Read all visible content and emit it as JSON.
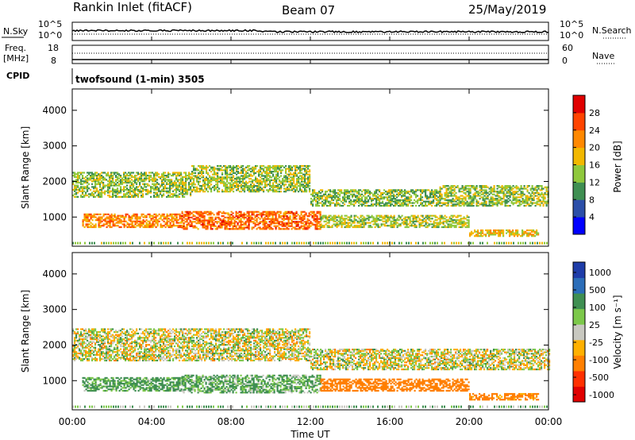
{
  "header": {
    "station": "Rankin Inlet (fitACF)",
    "beam": "Beam 07",
    "date": "25/May/2019"
  },
  "noise_panel": {
    "left_label": "N.Sky",
    "right_label": "N.Search",
    "left_ticks": [
      "10^5",
      "10^0"
    ],
    "right_ticks": [
      "10^5",
      "10^0"
    ]
  },
  "freq_panel": {
    "left_label_1": "Freq.",
    "left_label_2": "[MHz]",
    "right_label": "Nave",
    "left_ticks": [
      "18",
      "8"
    ],
    "right_ticks": [
      "60",
      "0"
    ]
  },
  "cpid": {
    "label": "CPID",
    "text": "twofsound (1-min) 3505"
  },
  "x_axis": {
    "label": "Time UT",
    "ticks": [
      "00:00",
      "04:00",
      "08:00",
      "12:00",
      "16:00",
      "20:00",
      "00:00"
    ]
  },
  "power_panel": {
    "ylabel": "Slant Range [km]",
    "yticks": [
      "4000",
      "3000",
      "2000",
      "1000"
    ],
    "colorbar_label": "Power [dB]",
    "colorbar_ticks": [
      "28",
      "24",
      "20",
      "16",
      "12",
      "8",
      "4"
    ],
    "colors": [
      "#0000ff",
      "#2b4ea8",
      "#3f8f52",
      "#8fc83c",
      "#f2b800",
      "#ff8800",
      "#ff4400",
      "#e00000"
    ]
  },
  "velocity_panel": {
    "ylabel": "Slant Range [km]",
    "yticks": [
      "4000",
      "3000",
      "2000",
      "1000"
    ],
    "colorbar_label": "Velocity [m s⁻¹]",
    "colorbar_ticks": [
      "1000",
      "500",
      "100",
      "25",
      "-25",
      "-100",
      "-500",
      "-1000"
    ],
    "colors": [
      "#1e3ca8",
      "#2b6db8",
      "#3f8f52",
      "#7cc84a",
      "#c8c8c0",
      "#ffb000",
      "#ff7f00",
      "#ff3000",
      "#e00000"
    ]
  },
  "chart_data": [
    {
      "type": "heatmap",
      "title": "Power [dB]",
      "xlabel": "Time UT",
      "ylabel": "Slant Range [km]",
      "xlim": [
        0,
        24
      ],
      "ylim": [
        180,
        4600
      ],
      "clim": [
        0,
        30
      ],
      "bands": [
        {
          "t0": 0.0,
          "t1": 6.0,
          "r0": 1550,
          "r1": 2250,
          "level": 14
        },
        {
          "t0": 6.0,
          "t1": 12.0,
          "r0": 1700,
          "r1": 2450,
          "level": 14
        },
        {
          "t0": 12.0,
          "t1": 18.5,
          "r0": 1300,
          "r1": 1750,
          "level": 13
        },
        {
          "t0": 18.5,
          "t1": 24.0,
          "r0": 1300,
          "r1": 1900,
          "level": 14
        },
        {
          "t0": 0.5,
          "t1": 5.5,
          "r0": 700,
          "r1": 1100,
          "level": 22
        },
        {
          "t0": 5.5,
          "t1": 12.5,
          "r0": 650,
          "r1": 1150,
          "level": 24
        },
        {
          "t0": 12.5,
          "t1": 20.0,
          "r0": 700,
          "r1": 1050,
          "level": 15
        },
        {
          "t0": 20.0,
          "t1": 23.5,
          "r0": 450,
          "r1": 650,
          "level": 18
        }
      ]
    },
    {
      "type": "heatmap",
      "title": "Velocity [m s⁻¹]",
      "xlabel": "Time UT",
      "ylabel": "Slant Range [km]",
      "xlim": [
        0,
        24
      ],
      "ylim": [
        180,
        4600
      ],
      "clim": [
        -1000,
        1000
      ],
      "bands": [
        {
          "t0": 0.0,
          "t1": 12.0,
          "r0": 1550,
          "r1": 2450,
          "velocity": 0
        },
        {
          "t0": 12.0,
          "t1": 24.0,
          "r0": 1300,
          "r1": 1900,
          "velocity": 0
        },
        {
          "t0": 0.5,
          "t1": 5.5,
          "r0": 700,
          "r1": 1100,
          "velocity": 150
        },
        {
          "t0": 5.5,
          "t1": 12.5,
          "r0": 650,
          "r1": 1150,
          "velocity": 120
        },
        {
          "t0": 12.5,
          "t1": 20.0,
          "r0": 700,
          "r1": 1050,
          "velocity": -300
        },
        {
          "t0": 20.0,
          "t1": 23.5,
          "r0": 450,
          "r1": 650,
          "velocity": -200
        }
      ]
    }
  ]
}
